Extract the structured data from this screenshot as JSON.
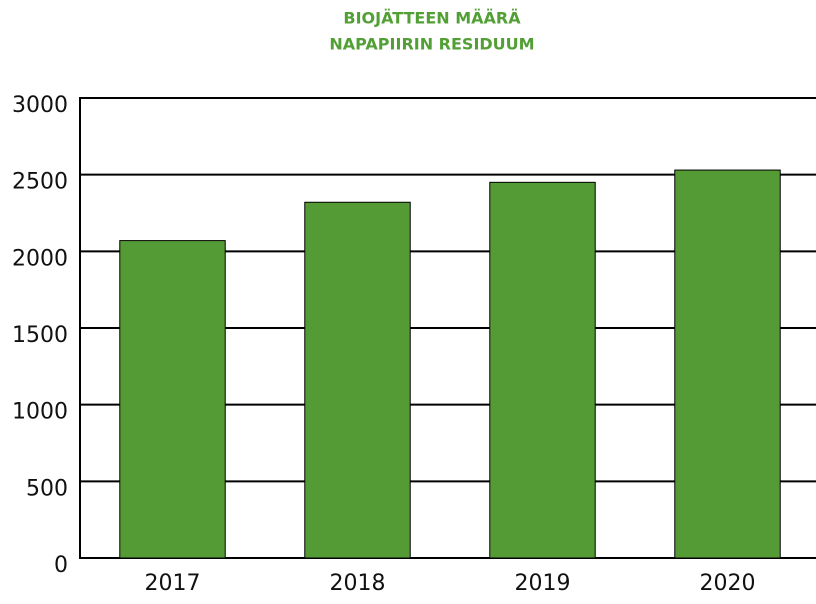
{
  "chart_data": {
    "type": "bar",
    "title": "BIOJÄTTEEN MÄÄRÄ",
    "subtitle": "NAPAPIIRIN RESIDUUM",
    "categories": [
      "2017",
      "2018",
      "2019",
      "2020"
    ],
    "values": [
      2070,
      2320,
      2450,
      2530
    ],
    "color": "#549b35",
    "ylim": [
      0,
      3000
    ],
    "yticks": [
      0,
      500,
      1000,
      1500,
      2000,
      2500,
      3000
    ],
    "grid": true
  }
}
